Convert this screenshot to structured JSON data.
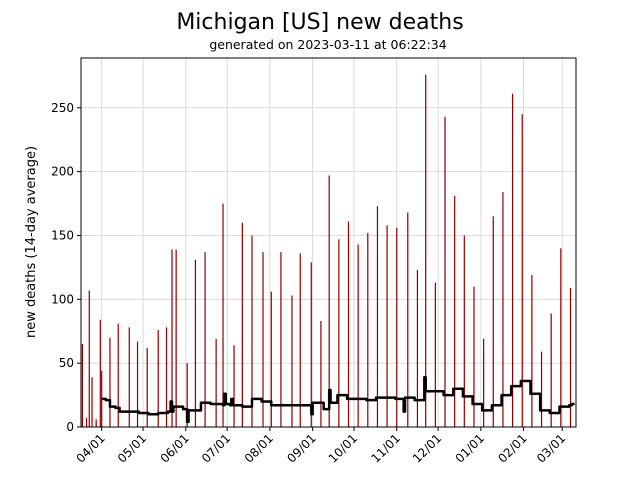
{
  "chart_data": {
    "type": "bar",
    "title": "Michigan [US] new deaths",
    "subtitle": "generated on 2023-03-11 at 06:22:34",
    "ylabel": "new deaths (14-day average)",
    "xlabel": "",
    "ylim": [
      0,
      289
    ],
    "xlim": [
      "2022-03-17",
      "2023-03-11"
    ],
    "yticks": [
      0,
      50,
      100,
      150,
      200,
      250
    ],
    "xticks": [
      {
        "date": "2022-04-01",
        "label": "04/01"
      },
      {
        "date": "2022-05-01",
        "label": "05/01"
      },
      {
        "date": "2022-06-01",
        "label": "06/01"
      },
      {
        "date": "2022-07-01",
        "label": "07/01"
      },
      {
        "date": "2022-08-01",
        "label": "08/01"
      },
      {
        "date": "2022-09-01",
        "label": "09/01"
      },
      {
        "date": "2022-10-01",
        "label": "10/01"
      },
      {
        "date": "2022-11-01",
        "label": "11/01"
      },
      {
        "date": "2022-12-01",
        "label": "12/01"
      },
      {
        "date": "2023-01-01",
        "label": "01/01"
      },
      {
        "date": "2023-02-01",
        "label": "02/01"
      },
      {
        "date": "2023-03-01",
        "label": "03/01"
      }
    ],
    "grid": true,
    "colors": {
      "bars": "#8b0000",
      "average": "#000000",
      "grid": "#d3d3d3"
    },
    "bars": [
      [
        "2022-03-18",
        65
      ],
      [
        "2022-03-21",
        7
      ],
      [
        "2022-03-23",
        107
      ],
      [
        "2022-03-25",
        39
      ],
      [
        "2022-03-28",
        6
      ],
      [
        "2022-03-31",
        84
      ],
      [
        "2022-04-01",
        44
      ],
      [
        "2022-04-07",
        70
      ],
      [
        "2022-04-13",
        81
      ],
      [
        "2022-04-21",
        78
      ],
      [
        "2022-04-27",
        67
      ],
      [
        "2022-05-04",
        62
      ],
      [
        "2022-05-12",
        76
      ],
      [
        "2022-05-18",
        78
      ],
      [
        "2022-05-22",
        139
      ],
      [
        "2022-05-25",
        139
      ],
      [
        "2022-06-02",
        50
      ],
      [
        "2022-06-08",
        131
      ],
      [
        "2022-06-15",
        137
      ],
      [
        "2022-06-23",
        69
      ],
      [
        "2022-06-28",
        175
      ],
      [
        "2022-07-06",
        64
      ],
      [
        "2022-07-12",
        160
      ],
      [
        "2022-07-19",
        150
      ],
      [
        "2022-07-27",
        137
      ],
      [
        "2022-08-02",
        106
      ],
      [
        "2022-08-09",
        137
      ],
      [
        "2022-08-17",
        103
      ],
      [
        "2022-08-23",
        136
      ],
      [
        "2022-08-31",
        129
      ],
      [
        "2022-09-07",
        83
      ],
      [
        "2022-09-13",
        197
      ],
      [
        "2022-09-20",
        147
      ],
      [
        "2022-09-27",
        161
      ],
      [
        "2022-10-04",
        143
      ],
      [
        "2022-10-11",
        152
      ],
      [
        "2022-10-18",
        173
      ],
      [
        "2022-10-25",
        158
      ],
      [
        "2022-11-01",
        156
      ],
      [
        "2022-11-09",
        168
      ],
      [
        "2022-11-16",
        123
      ],
      [
        "2022-11-22",
        276
      ],
      [
        "2022-11-29",
        113
      ],
      [
        "2022-12-06",
        243
      ],
      [
        "2022-12-13",
        181
      ],
      [
        "2022-12-20",
        150
      ],
      [
        "2022-12-27",
        110
      ],
      [
        "2023-01-03",
        69
      ],
      [
        "2023-01-10",
        165
      ],
      [
        "2023-01-17",
        184
      ],
      [
        "2023-01-24",
        261
      ],
      [
        "2023-01-31",
        245
      ],
      [
        "2023-02-07",
        119
      ],
      [
        "2023-02-14",
        59
      ],
      [
        "2023-02-21",
        89
      ],
      [
        "2023-02-28",
        140
      ],
      [
        "2023-03-07",
        109
      ]
    ],
    "average": [
      [
        "2022-04-01",
        22
      ],
      [
        "2022-04-04",
        21
      ],
      [
        "2022-04-07",
        16
      ],
      [
        "2022-04-11",
        15
      ],
      [
        "2022-04-14",
        12
      ],
      [
        "2022-04-25",
        12
      ],
      [
        "2022-04-28",
        11
      ],
      [
        "2022-05-05",
        10
      ],
      [
        "2022-05-12",
        11
      ],
      [
        "2022-05-19",
        12
      ],
      [
        "2022-05-21",
        20
      ],
      [
        "2022-05-22",
        12
      ],
      [
        "2022-05-23",
        16
      ],
      [
        "2022-05-28",
        16
      ],
      [
        "2022-05-30",
        14
      ],
      [
        "2022-06-01",
        14
      ],
      [
        "2022-06-02",
        4
      ],
      [
        "2022-06-03",
        13
      ],
      [
        "2022-06-12",
        19
      ],
      [
        "2022-06-19",
        18
      ],
      [
        "2022-06-28",
        17
      ],
      [
        "2022-06-29",
        26
      ],
      [
        "2022-06-30",
        18
      ],
      [
        "2022-07-03",
        17
      ],
      [
        "2022-07-04",
        22
      ],
      [
        "2022-07-05",
        17
      ],
      [
        "2022-07-12",
        16
      ],
      [
        "2022-07-19",
        22
      ],
      [
        "2022-07-26",
        20
      ],
      [
        "2022-08-02",
        17
      ],
      [
        "2022-08-30",
        17
      ],
      [
        "2022-08-31",
        10
      ],
      [
        "2022-09-01",
        19
      ],
      [
        "2022-09-07",
        19
      ],
      [
        "2022-09-09",
        14
      ],
      [
        "2022-09-12",
        14
      ],
      [
        "2022-09-13",
        29
      ],
      [
        "2022-09-14",
        19
      ],
      [
        "2022-09-19",
        25
      ],
      [
        "2022-09-26",
        22
      ],
      [
        "2022-10-10",
        21
      ],
      [
        "2022-10-17",
        23
      ],
      [
        "2022-10-31",
        22
      ],
      [
        "2022-11-06",
        12
      ],
      [
        "2022-11-07",
        23
      ],
      [
        "2022-11-14",
        21
      ],
      [
        "2022-11-20",
        21
      ],
      [
        "2022-11-21",
        39
      ],
      [
        "2022-11-22",
        28
      ],
      [
        "2022-12-05",
        25
      ],
      [
        "2022-12-12",
        30
      ],
      [
        "2022-12-19",
        24
      ],
      [
        "2022-12-26",
        18
      ],
      [
        "2023-01-02",
        13
      ],
      [
        "2023-01-09",
        17
      ],
      [
        "2023-01-16",
        25
      ],
      [
        "2023-01-23",
        32
      ],
      [
        "2023-01-30",
        36
      ],
      [
        "2023-02-06",
        26
      ],
      [
        "2023-02-13",
        13
      ],
      [
        "2023-02-20",
        11
      ],
      [
        "2023-02-27",
        16
      ],
      [
        "2023-03-06",
        17
      ],
      [
        "2023-03-08",
        18
      ],
      [
        "2023-03-10",
        18
      ]
    ]
  }
}
